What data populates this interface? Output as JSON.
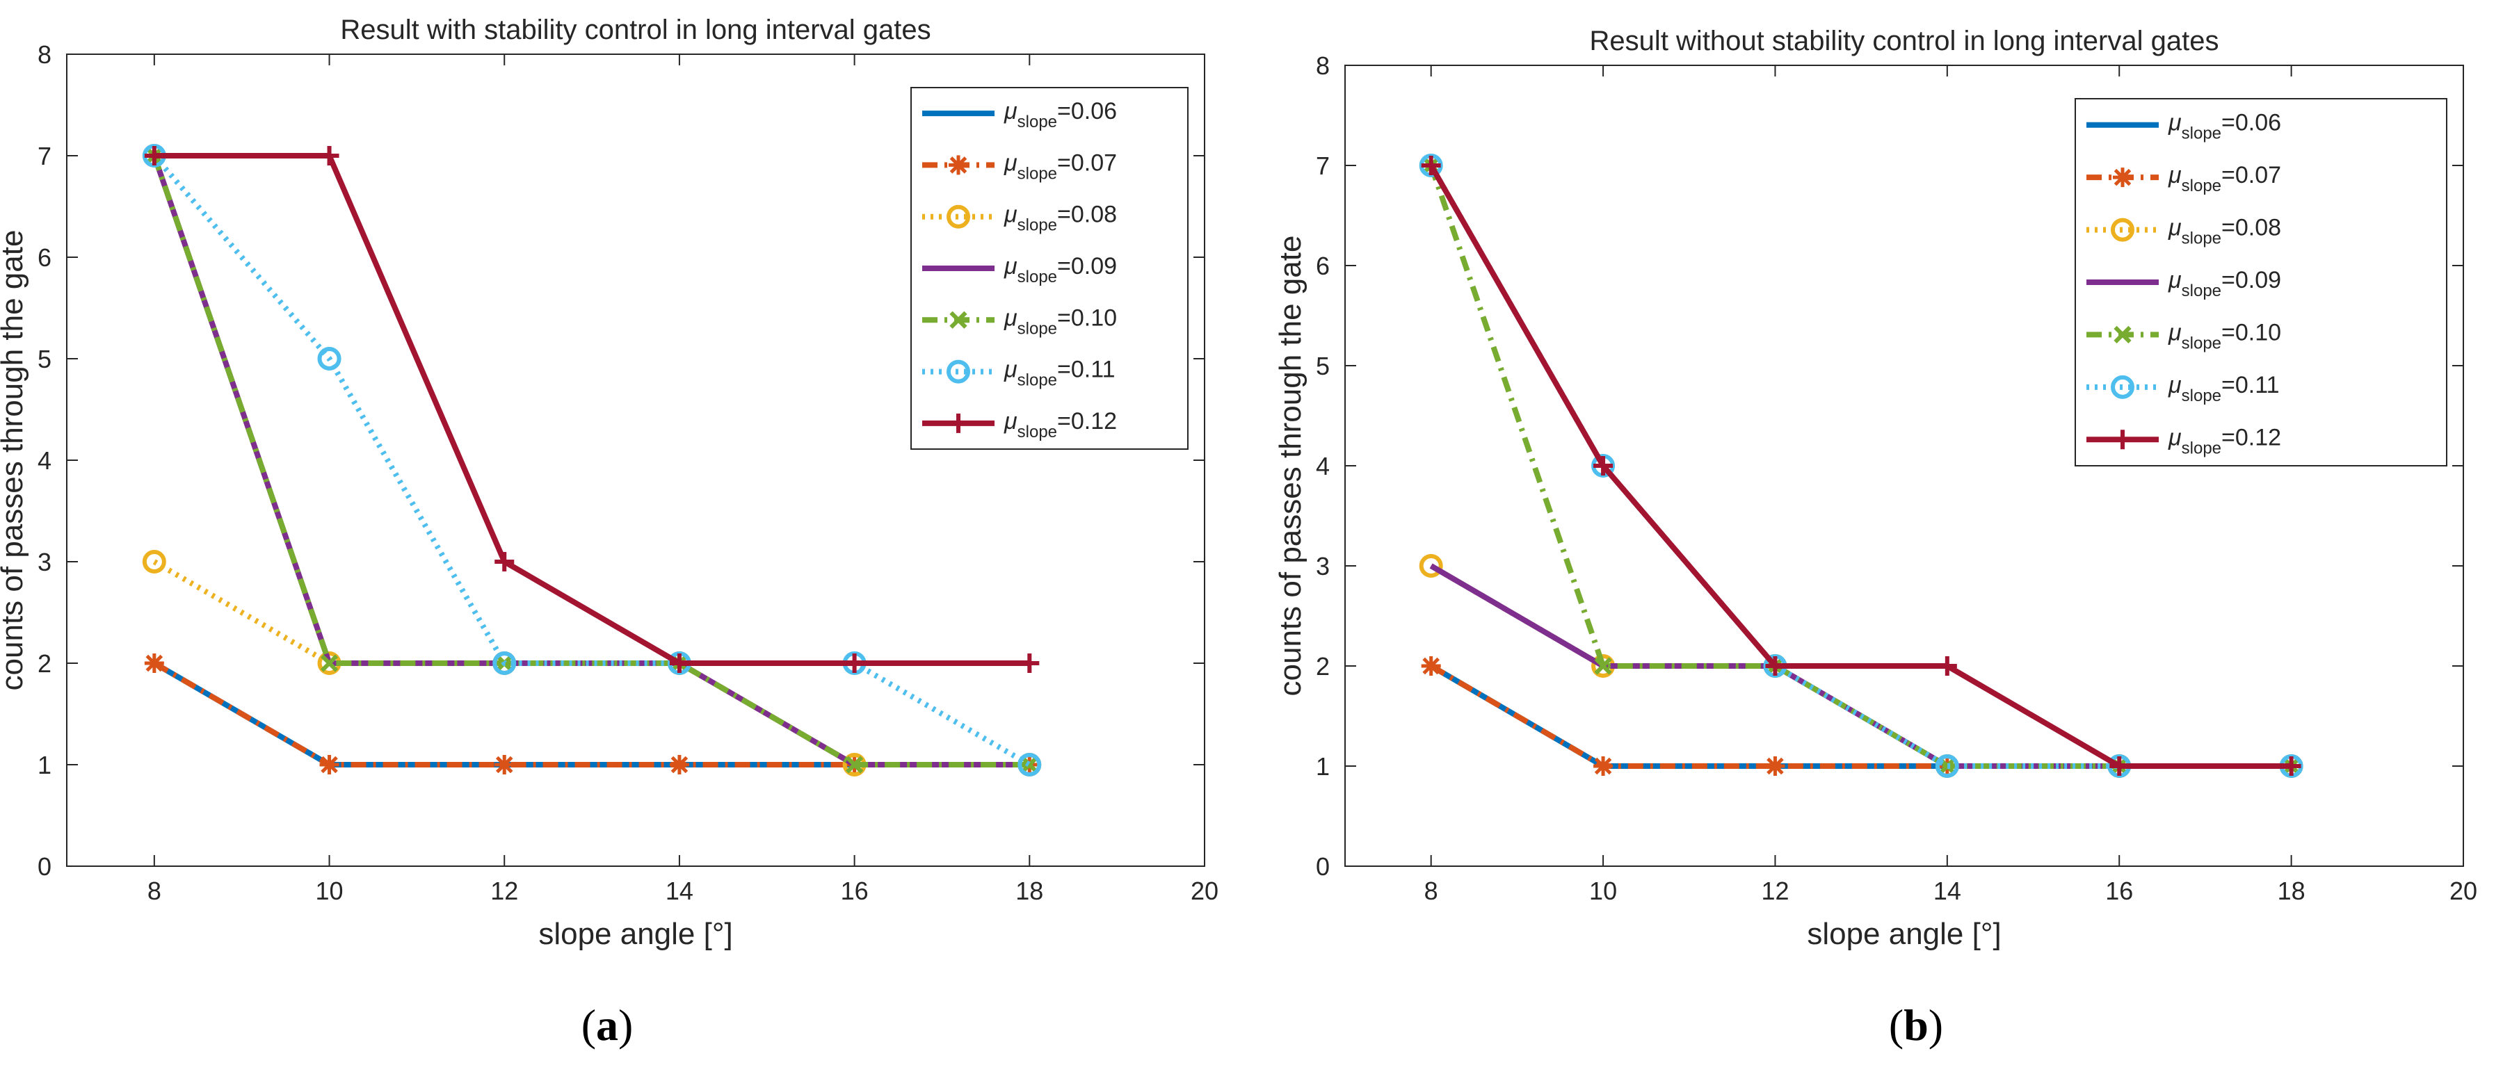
{
  "chart_data": [
    {
      "id": "a",
      "caption_open": "(",
      "caption_letter": "a",
      "caption_close": ")",
      "type": "line",
      "title": "Result with stability control in long interval gates",
      "xlabel": "slope angle [°]",
      "ylabel": "counts of passes through the gate",
      "xlim": [
        7,
        20
      ],
      "ylim": [
        0,
        8
      ],
      "xticks": [
        8,
        10,
        12,
        14,
        16,
        18,
        20
      ],
      "yticks": [
        0,
        1,
        2,
        3,
        4,
        5,
        6,
        7,
        8
      ],
      "legend_position": "top-right",
      "x": [
        8,
        10,
        12,
        14,
        16,
        18
      ],
      "series": [
        {
          "mu": "μ",
          "sub": "slope",
          "value": "=0.06",
          "color": "#0072BD",
          "dash": "solid",
          "marker": "none",
          "values": [
            2,
            1,
            1,
            1,
            1,
            1
          ]
        },
        {
          "mu": "μ",
          "sub": "slope",
          "value": "=0.07",
          "color": "#D95319",
          "dash": "dashdot",
          "marker": "star",
          "values": [
            2,
            1,
            1,
            1,
            1,
            1
          ]
        },
        {
          "mu": "μ",
          "sub": "slope",
          "value": "=0.08",
          "color": "#EDB120",
          "dash": "dotted",
          "marker": "circle",
          "values": [
            3,
            2,
            2,
            2,
            1,
            1
          ]
        },
        {
          "mu": "μ",
          "sub": "slope",
          "value": "=0.09",
          "color": "#7E2F8E",
          "dash": "solid",
          "marker": "none",
          "values": [
            7,
            2,
            2,
            2,
            1,
            1
          ]
        },
        {
          "mu": "μ",
          "sub": "slope",
          "value": "=0.10",
          "color": "#77AC30",
          "dash": "dashdot",
          "marker": "x",
          "values": [
            7,
            2,
            2,
            2,
            1,
            1
          ]
        },
        {
          "mu": "μ",
          "sub": "slope",
          "value": "=0.11",
          "color": "#4DBEEE",
          "dash": "dotted",
          "marker": "circle",
          "values": [
            7,
            5,
            2,
            2,
            2,
            1
          ]
        },
        {
          "mu": "μ",
          "sub": "slope",
          "value": "=0.12",
          "color": "#A2142F",
          "dash": "solid",
          "marker": "plus",
          "values": [
            7,
            7,
            3,
            2,
            2,
            2
          ]
        }
      ]
    },
    {
      "id": "b",
      "caption_open": "(",
      "caption_letter": "b",
      "caption_close": ")",
      "type": "line",
      "title": "Result without stability control in long interval gates",
      "xlabel": "slope angle [°]",
      "ylabel": "counts of passes through the gate",
      "xlim": [
        7,
        20
      ],
      "ylim": [
        0,
        8
      ],
      "xticks": [
        8,
        10,
        12,
        14,
        16,
        18,
        20
      ],
      "yticks": [
        0,
        1,
        2,
        3,
        4,
        5,
        6,
        7,
        8
      ],
      "legend_position": "top-right",
      "x": [
        8,
        10,
        12,
        14,
        16,
        18
      ],
      "series": [
        {
          "mu": "μ",
          "sub": "slope",
          "value": "=0.06",
          "color": "#0072BD",
          "dash": "solid",
          "marker": "none",
          "values": [
            2,
            1,
            1,
            1,
            1,
            1
          ]
        },
        {
          "mu": "μ",
          "sub": "slope",
          "value": "=0.07",
          "color": "#D95319",
          "dash": "dashdot",
          "marker": "star",
          "values": [
            2,
            1,
            1,
            1,
            1,
            1
          ]
        },
        {
          "mu": "μ",
          "sub": "slope",
          "value": "=0.08",
          "color": "#EDB120",
          "dash": "dotted",
          "marker": "circle",
          "values": [
            3,
            2,
            2,
            1,
            1,
            1
          ]
        },
        {
          "mu": "μ",
          "sub": "slope",
          "value": "=0.09",
          "color": "#7E2F8E",
          "dash": "solid",
          "marker": "none",
          "values": [
            3,
            2,
            2,
            1,
            1,
            1
          ]
        },
        {
          "mu": "μ",
          "sub": "slope",
          "value": "=0.10",
          "color": "#77AC30",
          "dash": "dashdot",
          "marker": "x",
          "values": [
            7,
            2,
            2,
            1,
            1,
            1
          ]
        },
        {
          "mu": "μ",
          "sub": "slope",
          "value": "=0.11",
          "color": "#4DBEEE",
          "dash": "dotted",
          "marker": "circle",
          "values": [
            7,
            4,
            2,
            1,
            1,
            1
          ]
        },
        {
          "mu": "μ",
          "sub": "slope",
          "value": "=0.12",
          "color": "#A2142F",
          "dash": "solid",
          "marker": "plus",
          "values": [
            7,
            4,
            2,
            2,
            1,
            1
          ]
        }
      ]
    }
  ]
}
